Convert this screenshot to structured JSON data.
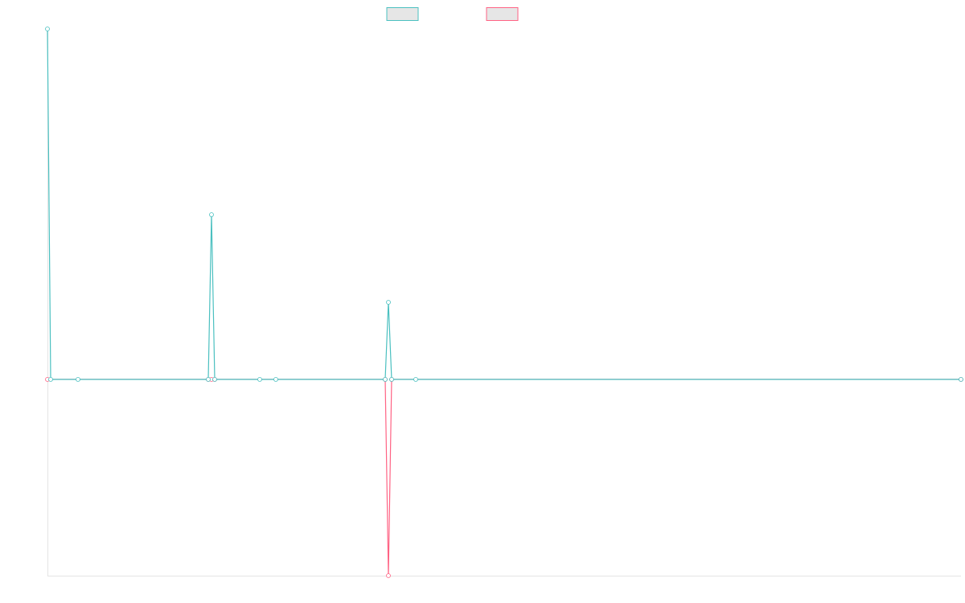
{
  "chart_data": {
    "type": "line",
    "xlim": [
      0,
      284
    ],
    "ylim": [
      -56,
      100
    ],
    "legend": "top",
    "series": [
      {
        "color": "#4bc0c0",
        "x": [
          0,
          1,
          9.5,
          50,
          51,
          52,
          66,
          71,
          105,
          106,
          107,
          114.5,
          284
        ],
        "values": [
          100,
          0,
          0,
          0,
          47,
          0,
          0,
          0,
          0,
          22,
          0,
          0,
          0
        ]
      },
      {
        "color": "#ff6384",
        "x": [
          0,
          50,
          51,
          52,
          105,
          106,
          107,
          284
        ],
        "values": [
          0,
          0,
          0,
          0,
          0,
          -56,
          0,
          0
        ]
      }
    ]
  }
}
